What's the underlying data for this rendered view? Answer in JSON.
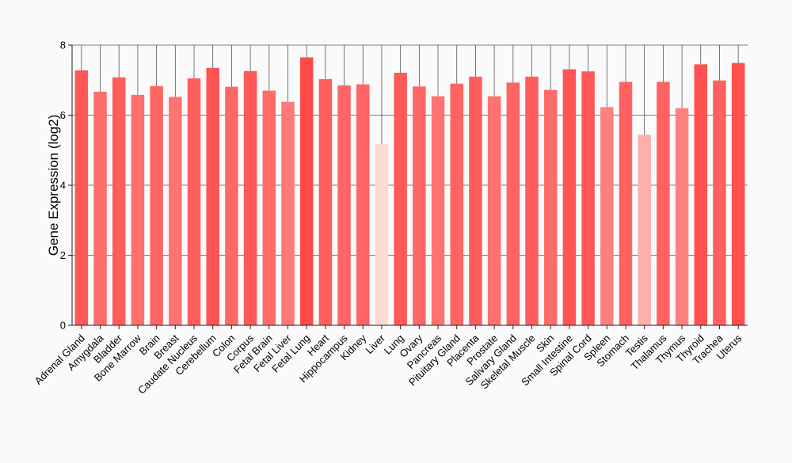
{
  "chart_data": {
    "type": "bar",
    "title": "",
    "xlabel": "",
    "ylabel": "Gene Expression (log2)",
    "ylim": [
      0,
      8
    ],
    "yticks": [
      0,
      2,
      4,
      6,
      8
    ],
    "grid": "horizontal",
    "categories": [
      "Adrenal Gland",
      "Amygdala",
      "Bladder",
      "Bone Marrow",
      "Brain",
      "Breast",
      "Caudate Nucleus",
      "Cerebellum",
      "Colon",
      "Corpus",
      "Fetal Brain",
      "Fetal Liver",
      "Fetal Lung",
      "Heart",
      "Hippocampus",
      "Kidney",
      "Liver",
      "Lung",
      "Ovary",
      "Pancreas",
      "Pituitary Gland",
      "Placenta",
      "Prostate",
      "Salivary Gland",
      "Skeletal Muscle",
      "Skin",
      "Small Intestine",
      "Spinal Cord",
      "Spleen",
      "Stomach",
      "Testis",
      "Thalamus",
      "Thymus",
      "Thyroid",
      "Trachea",
      "Uterus"
    ],
    "values": [
      7.28,
      6.67,
      7.08,
      6.58,
      6.83,
      6.52,
      7.05,
      7.35,
      6.81,
      7.26,
      6.7,
      6.38,
      7.65,
      7.03,
      6.85,
      6.88,
      5.17,
      7.21,
      6.82,
      6.54,
      6.9,
      7.1,
      6.54,
      6.93,
      7.1,
      6.72,
      7.31,
      7.25,
      6.23,
      6.95,
      5.44,
      6.95,
      6.2,
      7.45,
      6.99,
      7.49
    ],
    "colors": {
      "background": "#fafafa",
      "grid": "#555555",
      "axis": "#222222",
      "bar_low": "#fedad4",
      "bar_high": "#ff4a4a"
    }
  }
}
